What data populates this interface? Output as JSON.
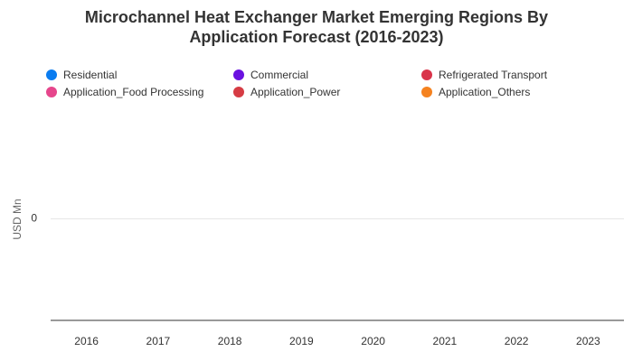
{
  "chart_data": {
    "type": "bar",
    "title": "Microchannel Heat Exchanger Market Emerging Regions By Application Forecast (2016-2023)",
    "y_label": "USD Mn",
    "categories": [
      "2016",
      "2017",
      "2018",
      "2019",
      "2020",
      "2021",
      "2022",
      "2023"
    ],
    "series": [
      {
        "name": "Residential",
        "color": "#0a7cf0",
        "values": [
          0,
          0,
          0,
          0,
          0,
          0,
          0,
          0
        ]
      },
      {
        "name": "Commercial",
        "color": "#6a11e0",
        "values": [
          0,
          0,
          0,
          0,
          0,
          0,
          0,
          0
        ]
      },
      {
        "name": "Refrigerated Transport",
        "color": "#d9344a",
        "values": [
          0,
          0,
          0,
          0,
          0,
          0,
          0,
          0
        ]
      },
      {
        "name": "Application_Food Processing",
        "color": "#e6468c",
        "values": [
          0,
          0,
          0,
          0,
          0,
          0,
          0,
          0
        ]
      },
      {
        "name": "Application_Power",
        "color": "#d63c44",
        "values": [
          0,
          0,
          0,
          0,
          0,
          0,
          0,
          0
        ]
      },
      {
        "name": "Application_Others",
        "color": "#f5821f",
        "values": [
          0,
          0,
          0,
          0,
          0,
          0,
          0,
          0
        ]
      }
    ],
    "ylim": [
      -1,
      1
    ],
    "yticks": [
      0
    ],
    "grid": true,
    "legend": "top"
  }
}
